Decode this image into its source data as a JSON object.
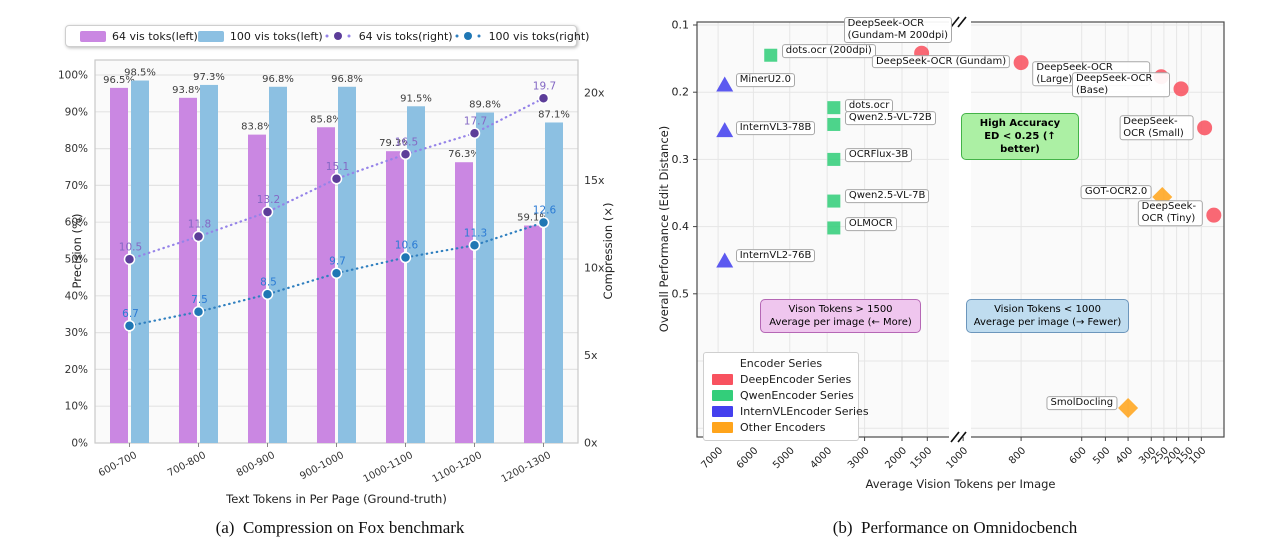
{
  "captions": {
    "a": "(a) Compression on Fox benchmark",
    "b": "(b) Performance on Omnidocbench"
  },
  "chart_data": [
    {
      "id": "fox-compression",
      "type": "bar+line",
      "xlabel": "Text Tokens in Per Page (Ground-truth)",
      "ylabel_left": "Precision (%)",
      "ylabel_right": "Compression (×)",
      "categories": [
        "600-700",
        "700-800",
        "800-900",
        "900-1000",
        "1000-1100",
        "1100-1200",
        "1200-1300"
      ],
      "y_left": {
        "min": 0,
        "max": 100,
        "tick_step": 10,
        "unit": "%"
      },
      "y_right": {
        "min": 0,
        "max": 20,
        "tick_step": 5,
        "unit": "x"
      },
      "grid": true,
      "legend_position": "top",
      "series": [
        {
          "name": "64 vis toks(left)",
          "type": "bar",
          "axis": "left",
          "color": "#CA87E2",
          "values": [
            96.5,
            93.8,
            83.8,
            85.8,
            79.3,
            76.3,
            59.1
          ]
        },
        {
          "name": "100 vis toks(left)",
          "type": "bar",
          "axis": "left",
          "color": "#8CC0E2",
          "values": [
            98.5,
            97.3,
            96.8,
            96.8,
            91.5,
            89.8,
            87.1
          ]
        },
        {
          "name": "64 vis toks(right)",
          "type": "line",
          "axis": "right",
          "color": "#9583E8",
          "marker_color": "#5C3D99",
          "label_color": "#8468C4",
          "values": [
            10.5,
            11.8,
            13.2,
            15.1,
            16.5,
            17.7,
            19.7
          ]
        },
        {
          "name": "100 vis toks(right)",
          "type": "line",
          "axis": "right",
          "color": "#2F7FBF",
          "marker_color": "#1F77B4",
          "label_color": "#2B7BD4",
          "values": [
            6.7,
            7.5,
            8.5,
            9.7,
            10.6,
            11.3,
            12.6
          ]
        }
      ]
    },
    {
      "id": "omnidocbench-performance",
      "type": "scatter",
      "xlabel": "Average Vision Tokens per Image",
      "ylabel": "Overall Performance (Edit Distance)",
      "x_ticks": [
        7000,
        6000,
        5000,
        4000,
        3000,
        2000,
        1500,
        1000,
        800,
        600,
        500,
        400,
        300,
        250,
        200,
        150,
        100
      ],
      "x_axis": {
        "reversed": true,
        "break_between": [
          1000,
          800
        ]
      },
      "y_ticks": [
        0.1,
        0.2,
        0.3,
        0.4,
        0.5
      ],
      "legend": {
        "title": "Encoder Series",
        "entries": [
          {
            "label": "DeepEncoder Series",
            "color": "#F8525F"
          },
          {
            "label": "QwenEncoder Series",
            "color": "#33CE7A"
          },
          {
            "label": "InternVLEncoder Series",
            "color": "#4440EE"
          },
          {
            "label": "Other Encoders",
            "color": "#FFA41B"
          }
        ]
      },
      "annotations": [
        {
          "id": "high-accuracy",
          "lines": [
            "High Accuracy",
            "ED < 0.25 (↑ better)"
          ],
          "bg": "#ACF0A4",
          "border": "#44B348"
        },
        {
          "id": "left-zone",
          "lines": [
            "Vison Tokens > 1500",
            "Average per image (← More)"
          ],
          "bg": "#EFC6EE",
          "border": "#B567B5"
        },
        {
          "id": "right-zone",
          "lines": [
            "Vision Tokens < 1000",
            "Average per image (→ Fewer)"
          ],
          "bg": "#BFDCEF",
          "border": "#6C96BC"
        }
      ],
      "points": [
        {
          "label": "dots.ocr (200dpi)",
          "series": "QwenEncoder Series",
          "marker": "square",
          "x": 5500,
          "y": 0.145,
          "label_side": "right",
          "label_dy": -4
        },
        {
          "label": "MinerU2.0",
          "series": "InternVLEncoder Series",
          "marker": "triangle",
          "x": 6800,
          "y": 0.19,
          "label_side": "right",
          "label_dy": -5
        },
        {
          "label": "InternVL3-78B",
          "series": "InternVLEncoder Series",
          "marker": "triangle",
          "x": 6800,
          "y": 0.258,
          "label_side": "right",
          "label_dy": -3
        },
        {
          "label": "InternVL2-76B",
          "series": "InternVLEncoder Series",
          "marker": "triangle",
          "x": 6800,
          "y": 0.452,
          "label_side": "right",
          "label_dy": -6
        },
        {
          "label": "dots.ocr",
          "series": "QwenEncoder Series",
          "marker": "square",
          "x": 3800,
          "y": 0.223,
          "label_side": "right",
          "label_dy": -2
        },
        {
          "label": "Qwen2.5-VL-72B",
          "series": "QwenEncoder Series",
          "marker": "square",
          "x": 3800,
          "y": 0.248,
          "label_side": "right",
          "label_dy": -6
        },
        {
          "label": "OCRFlux-3B",
          "series": "QwenEncoder Series",
          "marker": "square",
          "x": 3800,
          "y": 0.3,
          "label_side": "right",
          "label_dy": -4
        },
        {
          "label": "Qwen2.5-VL-7B",
          "series": "QwenEncoder Series",
          "marker": "square",
          "x": 3800,
          "y": 0.362,
          "label_side": "right",
          "label_dy": -5
        },
        {
          "label": "OLMOCR",
          "series": "QwenEncoder Series",
          "marker": "square",
          "x": 3800,
          "y": 0.402,
          "label_side": "right",
          "label_dy": -4
        },
        {
          "label": "DeepSeek-OCR\n(Gundam-M 200dpi)",
          "series": "DeepEncoder Series",
          "marker": "circle",
          "x": 1600,
          "y": 0.142,
          "label_side": "above"
        },
        {
          "label": "DeepSeek-OCR (Gundam)",
          "series": "DeepEncoder Series",
          "marker": "circle",
          "x": 800,
          "y": 0.156,
          "label_side": "left",
          "label_dy": -1
        },
        {
          "label": "DeepSeek-OCR (Large)",
          "series": "DeepEncoder Series",
          "marker": "circle",
          "x": 260,
          "y": 0.177,
          "label_side": "left",
          "label_dy": -3
        },
        {
          "label": "DeepSeek-OCR (Base)",
          "series": "DeepEncoder Series",
          "marker": "circle",
          "x": 180,
          "y": 0.195,
          "label_side": "left",
          "label_dy": -4
        },
        {
          "label": "DeepSeek-OCR (Small)",
          "series": "DeepEncoder Series",
          "marker": "circle",
          "x": 90,
          "y": 0.253,
          "label_side": "left",
          "label_dy": 0
        },
        {
          "label": "DeepSeek-OCR (Tiny)",
          "series": "DeepEncoder Series",
          "marker": "circle",
          "x": 67,
          "y": 0.383,
          "label_side": "left",
          "label_dy": -2
        },
        {
          "label": "GOT-OCR2.0",
          "series": "Other Encoders",
          "marker": "diamond",
          "x": 256,
          "y": 0.356,
          "label_side": "left",
          "label_dy": -5
        },
        {
          "label": "SmolDocling",
          "series": "Other Encoders",
          "marker": "diamond",
          "x": 400,
          "y": 0.67,
          "label_side": "left",
          "label_dy": -5
        }
      ]
    }
  ]
}
